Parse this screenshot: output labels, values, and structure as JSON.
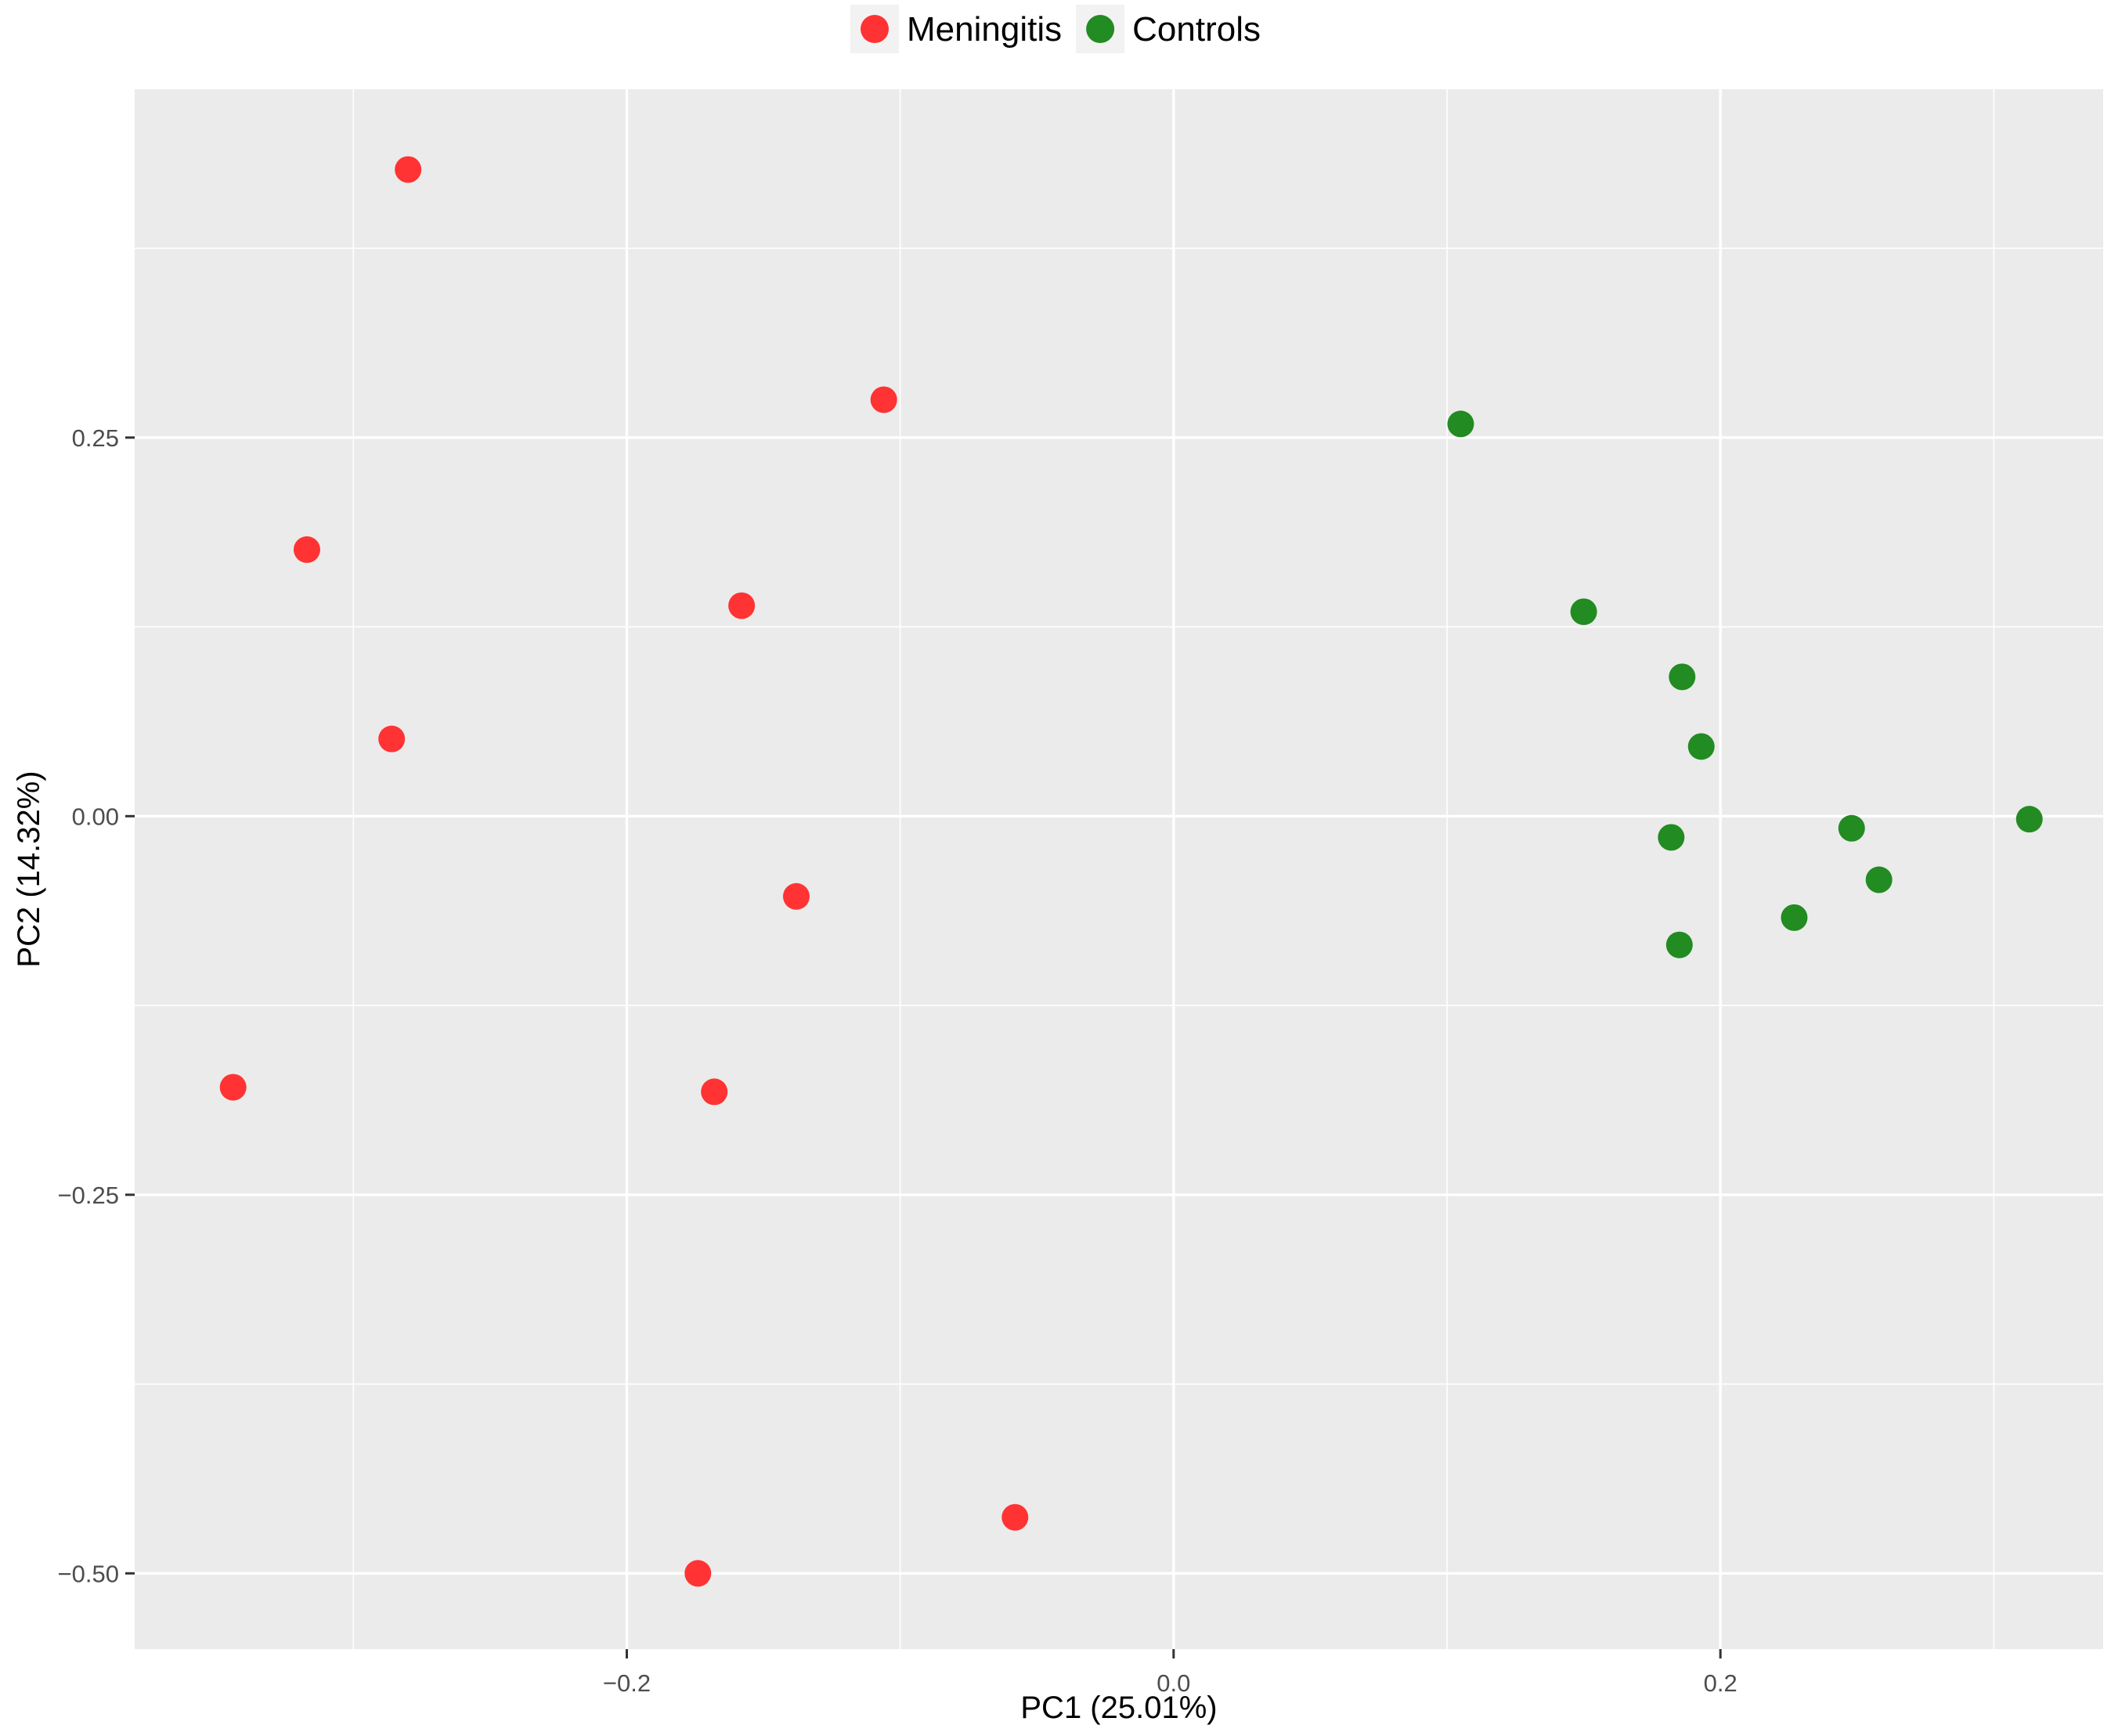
{
  "chart_data": {
    "type": "scatter",
    "title": "",
    "xlabel": "PC1 (25.01%)",
    "ylabel": "PC2 (14.32%)",
    "xlim": [
      -0.38,
      0.34
    ],
    "ylim": [
      -0.55,
      0.48
    ],
    "x_ticks": [
      {
        "value": -0.2,
        "label": "−0.2"
      },
      {
        "value": 0.0,
        "label": "0.0"
      },
      {
        "value": 0.2,
        "label": "0.2"
      }
    ],
    "y_ticks": [
      {
        "value": -0.5,
        "label": "−0.50"
      },
      {
        "value": -0.25,
        "label": "−0.25"
      },
      {
        "value": 0.0,
        "label": "0.00"
      },
      {
        "value": 0.25,
        "label": "0.25"
      }
    ],
    "grid": true,
    "legend_position": "top",
    "panel_color": "#EBEBEB",
    "grid_color": "#FFFFFF",
    "series": [
      {
        "name": "Meningitis",
        "color": "#FF3333",
        "points": [
          {
            "x": -0.28,
            "y": 0.427
          },
          {
            "x": -0.106,
            "y": 0.275
          },
          {
            "x": -0.317,
            "y": 0.176
          },
          {
            "x": -0.158,
            "y": 0.139
          },
          {
            "x": -0.286,
            "y": 0.051
          },
          {
            "x": -0.138,
            "y": -0.053
          },
          {
            "x": -0.344,
            "y": -0.179
          },
          {
            "x": -0.168,
            "y": -0.182
          },
          {
            "x": -0.058,
            "y": -0.463
          },
          {
            "x": -0.174,
            "y": -0.5
          }
        ]
      },
      {
        "name": "Controls",
        "color": "#228B22",
        "points": [
          {
            "x": 0.105,
            "y": 0.259
          },
          {
            "x": 0.15,
            "y": 0.135
          },
          {
            "x": 0.186,
            "y": 0.092
          },
          {
            "x": 0.193,
            "y": 0.046
          },
          {
            "x": 0.182,
            "y": -0.014
          },
          {
            "x": 0.248,
            "y": -0.008
          },
          {
            "x": 0.313,
            "y": -0.002
          },
          {
            "x": 0.258,
            "y": -0.042
          },
          {
            "x": 0.227,
            "y": -0.067
          },
          {
            "x": 0.185,
            "y": -0.085
          }
        ]
      }
    ]
  }
}
